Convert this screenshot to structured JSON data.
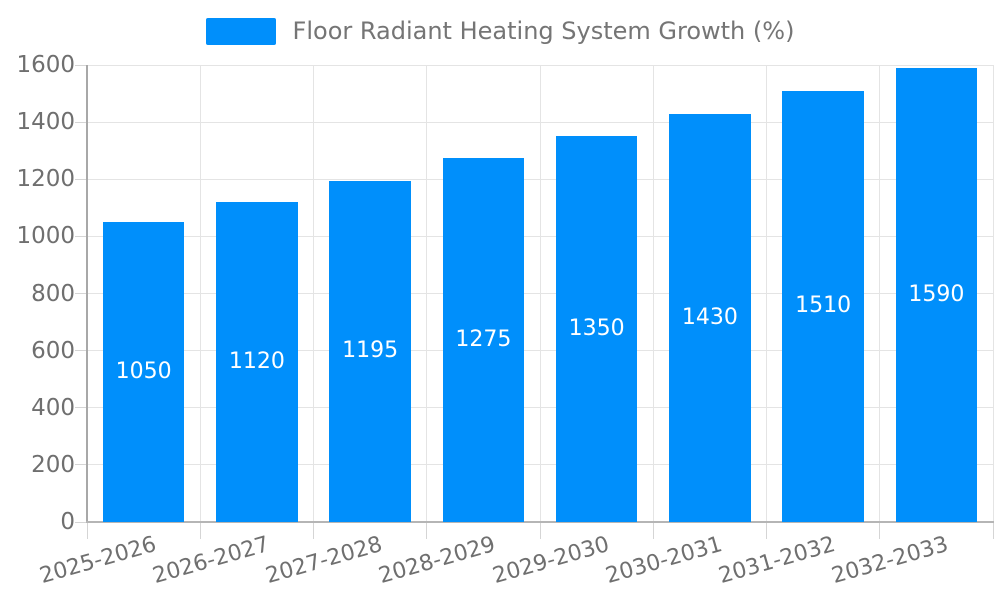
{
  "chart_data": {
    "type": "bar",
    "title": "",
    "series_name": "Floor Radiant Heating System Growth (%)",
    "categories": [
      "2025-2026",
      "2026-2027",
      "2027-2028",
      "2028-2029",
      "2029-2030",
      "2030-2031",
      "2031-2032",
      "2032-2033"
    ],
    "values": [
      1050,
      1120,
      1195,
      1275,
      1350,
      1430,
      1510,
      1590
    ],
    "xlabel": "",
    "ylabel": "",
    "ylim": [
      0,
      1600
    ],
    "yticks": [
      0,
      200,
      400,
      600,
      800,
      1000,
      1200,
      1400,
      1600
    ],
    "grid": true,
    "legend_position": "top",
    "x_label_rotation_deg": -16,
    "data_label_position": "center",
    "colors": {
      "bar": "#008FFB",
      "data_label": "#FFFFFF",
      "axis_label": "#6F6F6F",
      "legend_label": "#757575",
      "gridline": "#E4E4E4",
      "tick": "#D5D5D5",
      "axis_line_x": "#B5B5B5",
      "axis_line_y": "#A8A8A8",
      "background": "#FFFFFF"
    }
  }
}
